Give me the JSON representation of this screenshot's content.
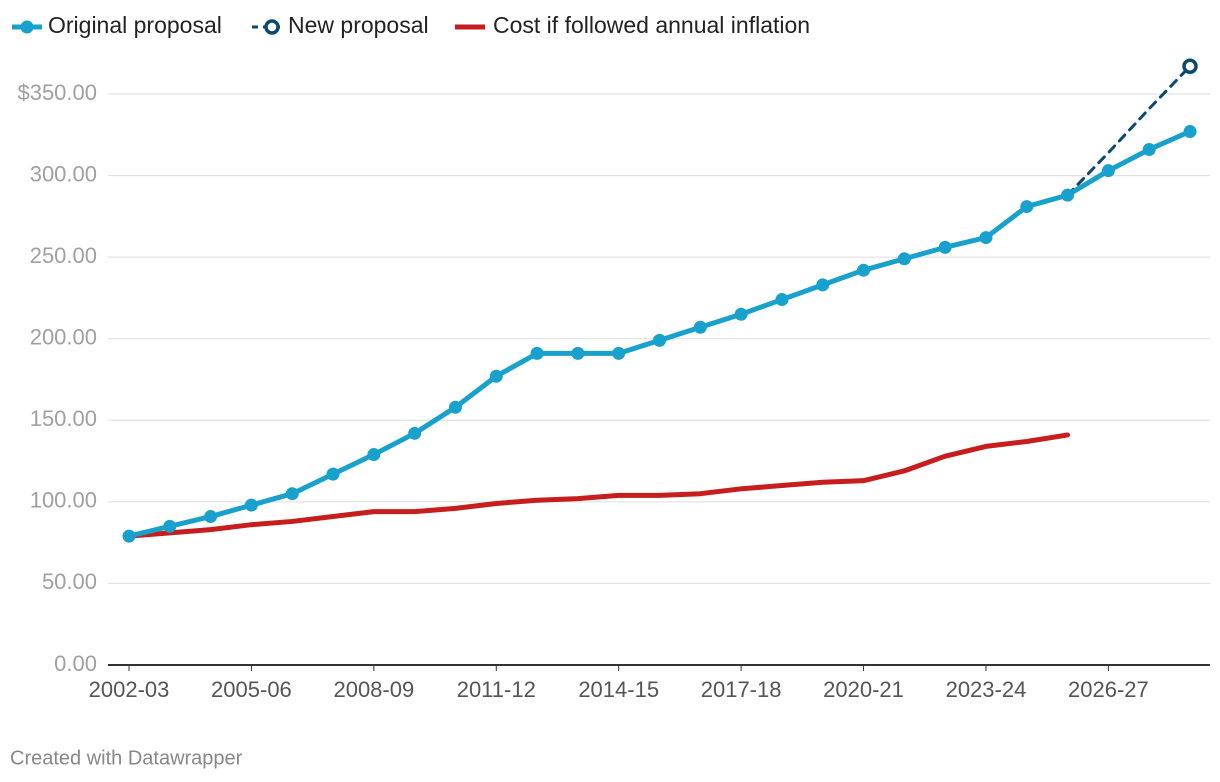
{
  "chart_data": {
    "type": "line",
    "categories": [
      "2002-03",
      null,
      null,
      "2005-06",
      null,
      null,
      "2008-09",
      null,
      null,
      "2011-12",
      null,
      null,
      "2014-15",
      null,
      null,
      "2017-18",
      null,
      null,
      "2020-21",
      null,
      null,
      "2023-24",
      null,
      null,
      "2026-27",
      null,
      null
    ],
    "series": [
      {
        "name": "Original proposal",
        "color": "#18a1cd",
        "style": "solid-dots",
        "values": [
          79,
          85,
          91,
          98,
          105,
          117,
          129,
          142,
          158,
          177,
          191,
          191,
          191,
          199,
          207,
          215,
          224,
          233,
          242,
          249,
          256,
          262,
          281,
          288,
          303,
          316,
          327
        ]
      },
      {
        "name": "New proposal",
        "color": "#0b4a6e",
        "style": "dashed-end",
        "values": [
          null,
          null,
          null,
          null,
          null,
          null,
          null,
          null,
          null,
          null,
          null,
          null,
          null,
          null,
          null,
          null,
          null,
          null,
          null,
          null,
          null,
          null,
          null,
          288,
          314,
          341,
          367
        ]
      },
      {
        "name": "Cost if followed annual inflation",
        "color": "#c71e1d",
        "style": "solid",
        "values": [
          79,
          81,
          83,
          86,
          88,
          91,
          94,
          94,
          96,
          99,
          101,
          102,
          104,
          104,
          105,
          108,
          110,
          112,
          113,
          119,
          128,
          134,
          137,
          141,
          null,
          null,
          null
        ]
      }
    ],
    "ylim": [
      0,
      350
    ],
    "yticks": [
      {
        "value": 0,
        "label": "0.00"
      },
      {
        "value": 50,
        "label": "50.00"
      },
      {
        "value": 100,
        "label": "100.00"
      },
      {
        "value": 150,
        "label": "150.00"
      },
      {
        "value": 200,
        "label": "200.00"
      },
      {
        "value": 250,
        "label": "250.00"
      },
      {
        "value": 300,
        "label": "300.00"
      },
      {
        "value": 350,
        "label": "$350.00"
      }
    ],
    "grid": true,
    "legend": "top",
    "footer": "Created with Datawrapper"
  }
}
